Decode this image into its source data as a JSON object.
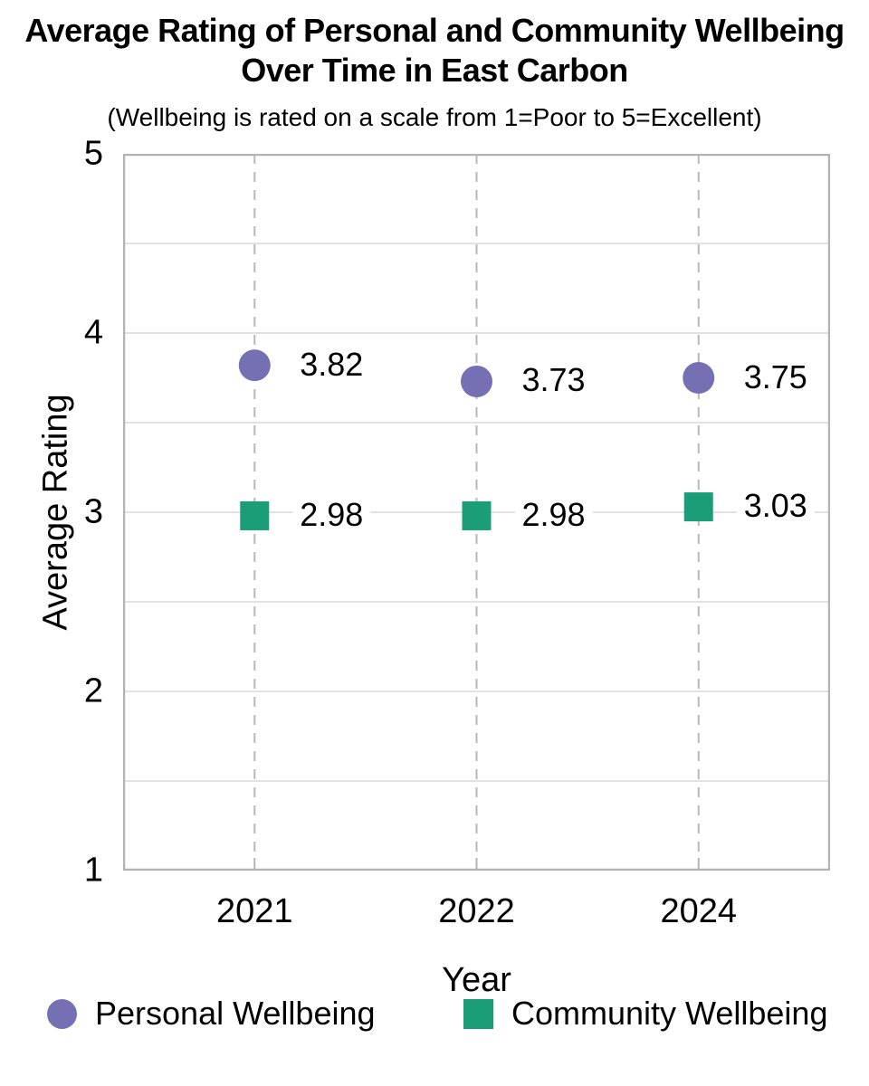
{
  "page": {
    "title_line1": "Average Rating of Personal and Community Wellbeing",
    "title_line2": "Over Time in East Carbon",
    "subtitle": "(Wellbeing is rated on a scale from 1=Poor to 5=Excellent)"
  },
  "chart_data": {
    "type": "scatter",
    "title": "Average Rating of Personal and Community Wellbeing Over Time in East Carbon",
    "subtitle": "(Wellbeing is rated on a scale from 1=Poor to 5=Excellent)",
    "categories": [
      "2021",
      "2022",
      "2024"
    ],
    "series": [
      {
        "name": "Personal Wellbeing",
        "marker": "circle",
        "color": "#7570b3",
        "values": [
          3.82,
          3.73,
          3.75
        ]
      },
      {
        "name": "Community Wellbeing",
        "marker": "square",
        "color": "#1b9e77",
        "values": [
          2.98,
          2.98,
          3.03
        ]
      }
    ],
    "xlabel": "Year",
    "ylabel": "Average Rating",
    "ylim": [
      1,
      5
    ],
    "y_major_ticks": [
      5,
      4,
      3,
      2,
      1
    ],
    "y_grid_step": 0.5,
    "grid": true,
    "x_gridlines": "dashed-at-categories",
    "data_labels": true,
    "data_label_decimals": 2,
    "legend_position": "bottom"
  },
  "colors": {
    "grid": "#d9d9d9",
    "frame": "#b3b3b3",
    "dashed_line": "#b8b8b8",
    "text": "#000000",
    "background": "#ffffff"
  }
}
